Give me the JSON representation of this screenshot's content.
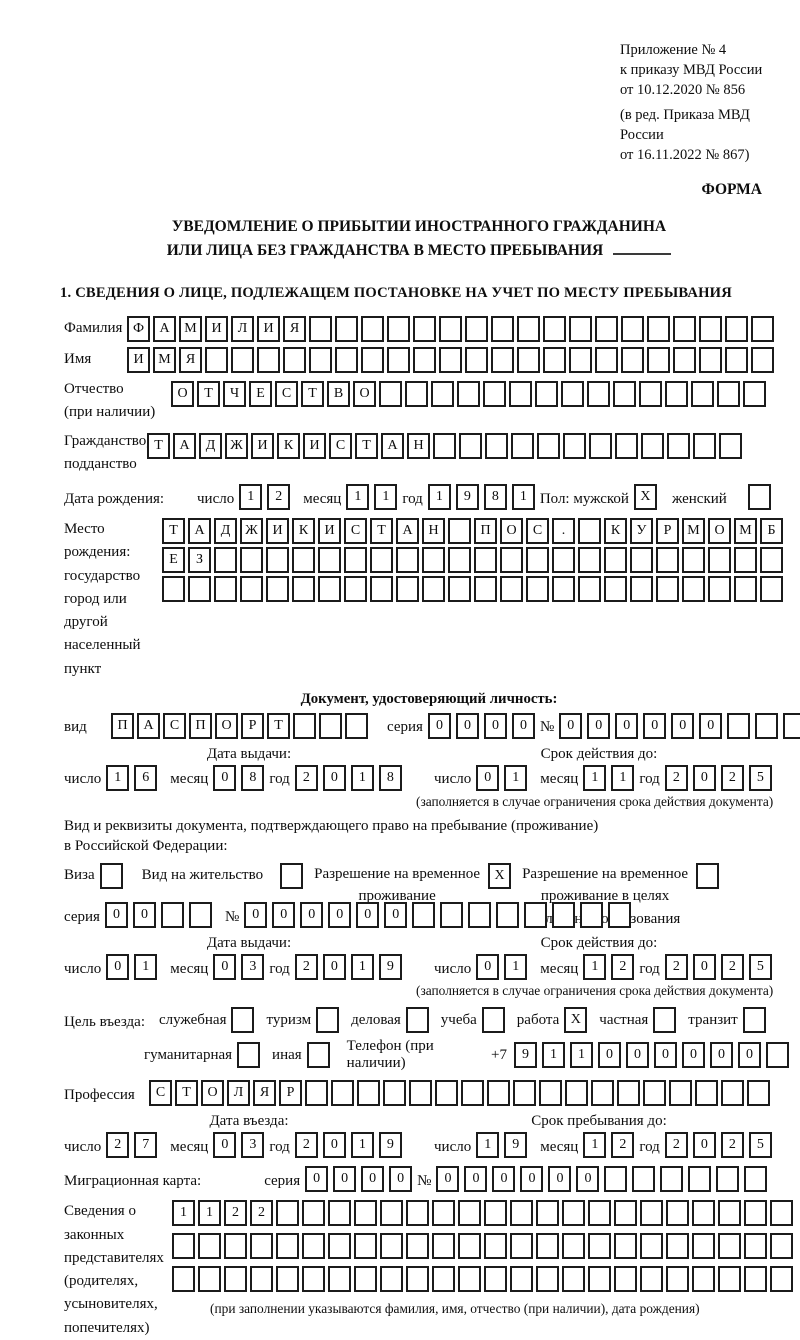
{
  "annex": {
    "lines": [
      "Приложение № 4",
      "к приказу МВД России",
      "от 10.12.2020 № 856",
      "(в ред. Приказа МВД России",
      "от 16.11.2022 № 867)"
    ],
    "forma": "ФОРМА"
  },
  "title": {
    "line1": "УВЕДОМЛЕНИЕ О ПРИБЫТИИ ИНОСТРАННОГО ГРАЖДАНИНА",
    "line2": "ИЛИ ЛИЦА БЕЗ ГРАЖДАНСТВА В МЕСТО ПРЕБЫВАНИЯ"
  },
  "section1_heading": "1. СВЕДЕНИЯ О ЛИЦЕ, ПОДЛЕЖАЩЕМ ПОСТАНОВКЕ НА УЧЕТ ПО МЕСТУ ПРЕБЫВАНИЯ",
  "labels": {
    "day": "число",
    "month": "месяц",
    "year": "год",
    "series": "серия",
    "number": "№"
  },
  "person": {
    "surname": {
      "label": "Фамилия",
      "boxes": {
        "text": "ФАМИЛИЯ",
        "len": 25
      }
    },
    "given_name": {
      "label": "Имя",
      "boxes": {
        "text": "ИМЯ",
        "len": 25
      }
    },
    "patronymic": {
      "label": "Отчество",
      "label_note": "(при наличии)",
      "boxes": {
        "text": "ОТЧЕСТВО",
        "len": 23
      }
    },
    "citizenship": {
      "label": "Гражданство,",
      "label2": "подданство",
      "boxes": {
        "text": "ТАДЖИКИСТАН",
        "len": 23
      }
    },
    "birth_date": {
      "label": "Дата рождения:",
      "day": "12",
      "month": "11",
      "year": "1981",
      "sex_label": "Пол: мужской",
      "male": {
        "text": "X",
        "len": 1
      },
      "female_label": "женский",
      "female": {
        "text": "",
        "len": 1
      }
    },
    "birth_place": {
      "label": "Место рождения:",
      "sub1": "государство",
      "sub2": "город или другой",
      "sub3": "населенный пункт",
      "row1": {
        "text": "ТАДЖИКИСТАН ПОС. КУРМОМБ",
        "len": 24
      },
      "row2": {
        "text": "ЕЗ",
        "len": 24
      },
      "row3": {
        "text": "",
        "len": 24
      }
    }
  },
  "identity_doc": {
    "heading": "Документ, удостоверяющий личность:",
    "kind_label": "вид",
    "kind": {
      "text": "ПАСПОРТ",
      "len": 10
    },
    "series": {
      "text": "0000",
      "len": 4
    },
    "number": {
      "text": "000000",
      "len": 11
    },
    "issue_heading": "Дата выдачи:",
    "issue": {
      "day": "16",
      "month": "08",
      "year": "2018"
    },
    "valid_heading": "Срок действия до:",
    "valid": {
      "day": "01",
      "month": "11",
      "year": "2025"
    },
    "note": "(заполняется в случае ограничения срока действия документа)"
  },
  "residence_doc": {
    "line1": "Вид и реквизиты документа, подтверждающего право на пребывание (проживание)",
    "line2": "в Российской Федерации:",
    "visa_label": "Виза",
    "visa": {
      "text": "",
      "len": 1
    },
    "permit_label": "Вид на жительство",
    "permit": {
      "text": "",
      "len": 1
    },
    "rvp_label1": "Разрешение на временное",
    "rvp_label2": "проживание",
    "rvp": {
      "text": "X",
      "len": 1
    },
    "rvpo_label1": "Разрешение на временное",
    "rvpo_label2": "проживание в целях",
    "rvpo_label3": "получения образования",
    "rvpo": {
      "text": "",
      "len": 1
    },
    "series": {
      "text": "00",
      "len": 4
    },
    "number": {
      "text": "000000",
      "len": 14
    },
    "issue_heading": "Дата выдачи:",
    "issue": {
      "day": "01",
      "month": "03",
      "year": "2019"
    },
    "valid_heading": "Срок действия до:",
    "valid": {
      "day": "01",
      "month": "12",
      "year": "2025"
    },
    "note": "(заполняется в случае ограничения срока действия документа)"
  },
  "purpose": {
    "label": "Цель въезда:",
    "options": [
      {
        "label": "служебная",
        "box": {
          "text": "",
          "len": 1
        }
      },
      {
        "label": "туризм",
        "box": {
          "text": "",
          "len": 1
        }
      },
      {
        "label": "деловая",
        "box": {
          "text": "",
          "len": 1
        }
      },
      {
        "label": "учеба",
        "box": {
          "text": "",
          "len": 1
        }
      },
      {
        "label": "работа",
        "box": {
          "text": "X",
          "len": 1
        }
      },
      {
        "label": "частная",
        "box": {
          "text": "",
          "len": 1
        }
      },
      {
        "label": "транзит",
        "box": {
          "text": "",
          "len": 1
        }
      },
      {
        "label": "гуманитарная",
        "box": {
          "text": "",
          "len": 1
        }
      },
      {
        "label": "иная",
        "box": {
          "text": "",
          "len": 1
        }
      }
    ],
    "phone_label": "Телефон (при наличии)",
    "phone_prefix": "+7",
    "phone": {
      "text": "911000000",
      "len": 10
    },
    "profession_label": "Профессия",
    "profession": {
      "text": "СТОЛЯР",
      "len": 24
    }
  },
  "stay": {
    "entry_heading": "Дата въезда:",
    "entry": {
      "day": "27",
      "month": "03",
      "year": "2019"
    },
    "until_heading": "Срок пребывания до:",
    "until": {
      "day": "19",
      "month": "12",
      "year": "2025"
    },
    "migration_card_label": "Миграционная карта:",
    "mc_series": {
      "text": "0000",
      "len": 4
    },
    "mc_number": {
      "text": "000000",
      "len": 12
    }
  },
  "representatives": {
    "label_lines": [
      "Сведения о",
      "законных",
      "представителях",
      "(родителях,",
      "усыновителях,",
      "попечителях)"
    ],
    "row1": {
      "text": "1122",
      "len": 24
    },
    "row2": {
      "text": "",
      "len": 24
    },
    "row3": {
      "text": "",
      "len": 24
    },
    "note": "(при заполнении указываются фамилия, имя, отчество (при наличии), дата рождения)"
  }
}
